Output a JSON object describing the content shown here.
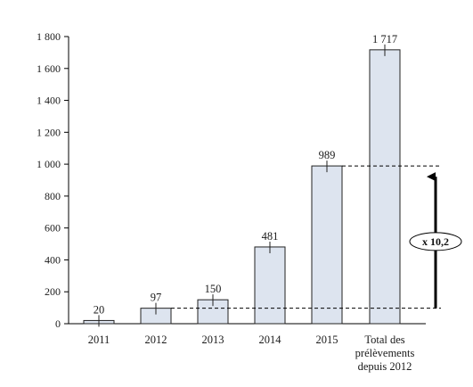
{
  "chart_data": {
    "type": "bar",
    "categories": [
      "2011",
      "2012",
      "2013",
      "2014",
      "2015",
      "Total des prélèvements depuis 2012"
    ],
    "category_lines": [
      [
        "2011"
      ],
      [
        "2012"
      ],
      [
        "2013"
      ],
      [
        "2014"
      ],
      [
        "2015"
      ],
      [
        "Total des",
        "prélèvements",
        "depuis 2012"
      ]
    ],
    "values": [
      20,
      97,
      150,
      481,
      989,
      1717
    ],
    "value_labels": [
      "20",
      "97",
      "150",
      "481",
      "989",
      "1 717"
    ],
    "yticks": [
      0,
      200,
      400,
      600,
      800,
      1000,
      1200,
      1400,
      1600,
      1800
    ],
    "ytick_labels": [
      "0",
      "200",
      "400",
      "600",
      "800",
      "1 000",
      "1 200",
      "1 400",
      "1 600",
      "1 800"
    ],
    "ylim": [
      0,
      1800
    ],
    "title": "",
    "xlabel": "",
    "ylabel": "",
    "grid": false,
    "bar_color": "#dde4ef",
    "bar_edge": "#222222",
    "annotation": {
      "text": "x 10,2",
      "from_value": 97,
      "to_value": 989
    }
  }
}
